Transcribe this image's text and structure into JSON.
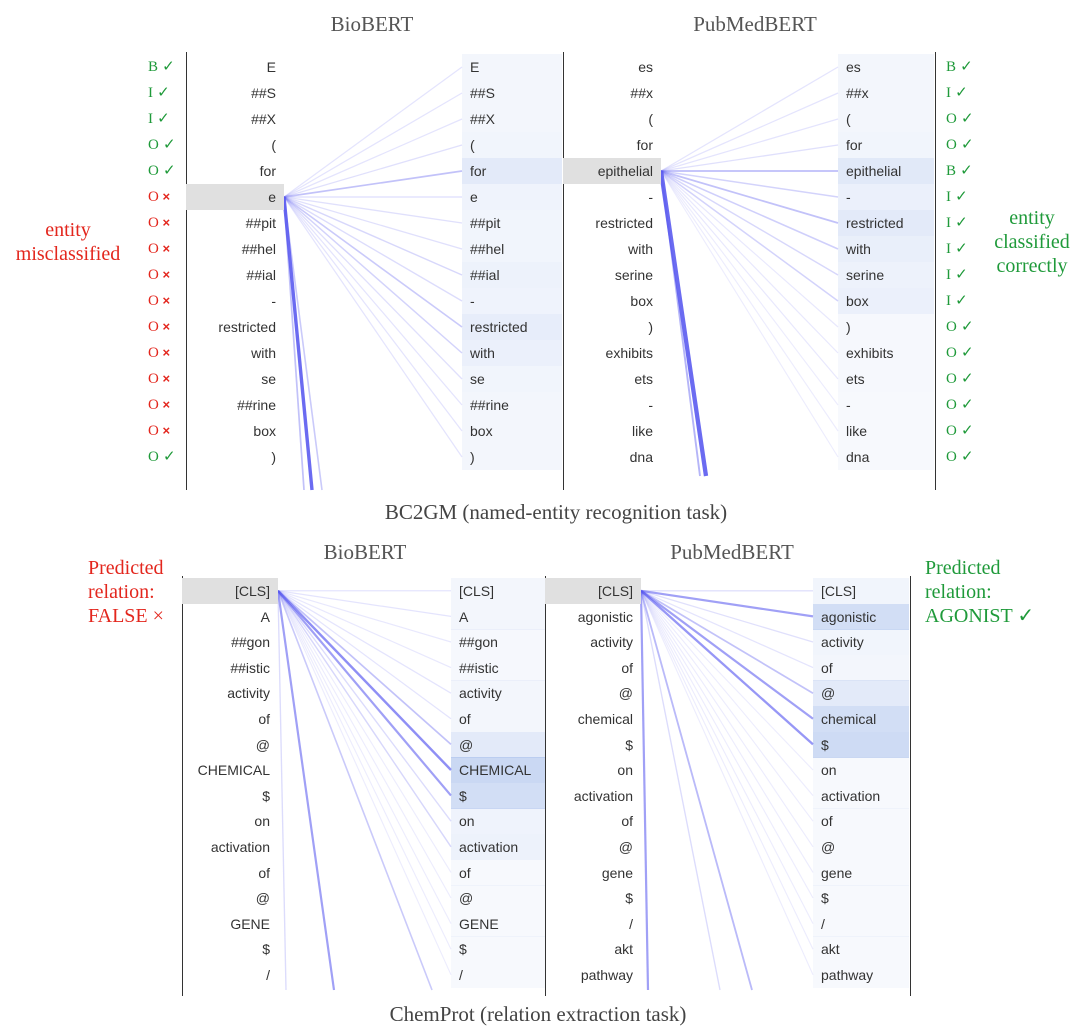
{
  "panels": [
    {
      "caption": "BC2GM (named-entity recognition task)",
      "models": [
        {
          "name": "BioBERT",
          "tokens": [
            "E",
            "##S",
            "##X",
            "(",
            "for",
            "e",
            "##pit",
            "##hel",
            "##ial",
            "-",
            "restricted",
            "with",
            "se",
            "##rine",
            "box",
            ")"
          ],
          "selected": 5,
          "target_weights": [
            0.04,
            0.04,
            0.04,
            0.05,
            0.12,
            0.06,
            0.05,
            0.05,
            0.07,
            0.06,
            0.1,
            0.08,
            0.05,
            0.04,
            0.04,
            0.04
          ],
          "labels": [
            {
              "tag": "B",
              "mark": "✓",
              "status": "correct"
            },
            {
              "tag": "I",
              "mark": "✓",
              "status": "correct"
            },
            {
              "tag": "I",
              "mark": "✓",
              "status": "correct"
            },
            {
              "tag": "O",
              "mark": "✓",
              "status": "correct"
            },
            {
              "tag": "O",
              "mark": "✓",
              "status": "correct"
            },
            {
              "tag": "O",
              "mark": "×",
              "status": "wrong"
            },
            {
              "tag": "O",
              "mark": "×",
              "status": "wrong"
            },
            {
              "tag": "O",
              "mark": "×",
              "status": "wrong"
            },
            {
              "tag": "O",
              "mark": "×",
              "status": "wrong"
            },
            {
              "tag": "O",
              "mark": "×",
              "status": "wrong"
            },
            {
              "tag": "O",
              "mark": "×",
              "status": "wrong"
            },
            {
              "tag": "O",
              "mark": "×",
              "status": "wrong"
            },
            {
              "tag": "O",
              "mark": "×",
              "status": "wrong"
            },
            {
              "tag": "O",
              "mark": "×",
              "status": "wrong"
            },
            {
              "tag": "O",
              "mark": "×",
              "status": "wrong"
            },
            {
              "tag": "O",
              "mark": "✓",
              "status": "correct"
            }
          ]
        },
        {
          "name": "PubMedBERT",
          "tokens": [
            "es",
            "##x",
            "(",
            "for",
            "epithelial",
            "-",
            "restricted",
            "with",
            "serine",
            "box",
            ")",
            "exhibits",
            "ets",
            "-",
            "like",
            "dna"
          ],
          "selected": 4,
          "target_weights": [
            0.04,
            0.04,
            0.04,
            0.05,
            0.13,
            0.08,
            0.12,
            0.09,
            0.07,
            0.08,
            0.03,
            0.03,
            0.03,
            0.02,
            0.02,
            0.02
          ],
          "labels": [
            {
              "tag": "B",
              "mark": "✓",
              "status": "correct"
            },
            {
              "tag": "I",
              "mark": "✓",
              "status": "correct"
            },
            {
              "tag": "O",
              "mark": "✓",
              "status": "correct"
            },
            {
              "tag": "O",
              "mark": "✓",
              "status": "correct"
            },
            {
              "tag": "B",
              "mark": "✓",
              "status": "correct"
            },
            {
              "tag": "I",
              "mark": "✓",
              "status": "correct"
            },
            {
              "tag": "I",
              "mark": "✓",
              "status": "correct"
            },
            {
              "tag": "I",
              "mark": "✓",
              "status": "correct"
            },
            {
              "tag": "I",
              "mark": "✓",
              "status": "correct"
            },
            {
              "tag": "I",
              "mark": "✓",
              "status": "correct"
            },
            {
              "tag": "O",
              "mark": "✓",
              "status": "correct"
            },
            {
              "tag": "O",
              "mark": "✓",
              "status": "correct"
            },
            {
              "tag": "O",
              "mark": "✓",
              "status": "correct"
            },
            {
              "tag": "O",
              "mark": "✓",
              "status": "correct"
            },
            {
              "tag": "O",
              "mark": "✓",
              "status": "correct"
            },
            {
              "tag": "O",
              "mark": "✓",
              "status": "correct"
            }
          ]
        }
      ],
      "notes": [
        {
          "lines": [
            "entity",
            "misclassified"
          ],
          "color": "#e3261d"
        },
        {
          "lines": [
            "entity",
            "classified",
            "correctly"
          ],
          "color": "#1f9a3a"
        }
      ]
    },
    {
      "caption": "ChemProt (relation extraction task)",
      "models": [
        {
          "name": "BioBERT",
          "tokens": [
            "[CLS]",
            "A",
            "##gon",
            "##istic",
            "activity",
            "of",
            "@",
            "CHEMICAL",
            "$",
            "on",
            "activation",
            "of",
            "@",
            "GENE",
            "$",
            "/"
          ],
          "selected": 0,
          "target_weights": [
            0.04,
            0.04,
            0.03,
            0.03,
            0.04,
            0.04,
            0.12,
            0.24,
            0.2,
            0.06,
            0.07,
            0.02,
            0.02,
            0.02,
            0.02,
            0.02
          ]
        },
        {
          "name": "PubMedBERT",
          "tokens": [
            "[CLS]",
            "agonistic",
            "activity",
            "of",
            "@",
            "chemical",
            "$",
            "on",
            "activation",
            "of",
            "@",
            "gene",
            "$",
            "/",
            "akt",
            "pathway"
          ],
          "selected": 0,
          "target_weights": [
            0.05,
            0.2,
            0.05,
            0.04,
            0.12,
            0.2,
            0.22,
            0.02,
            0.02,
            0.02,
            0.02,
            0.02,
            0.02,
            0.02,
            0.02,
            0.02
          ]
        }
      ],
      "notes": [
        {
          "lines": [
            "Predicted",
            "relation:",
            "FALSE ×"
          ],
          "color": "#e3261d"
        },
        {
          "lines": [
            "Predicted",
            "relation:",
            "AGONIST ✓"
          ],
          "color": "#1f9a3a"
        }
      ]
    }
  ],
  "colors": {
    "correct": "#1f9a3a",
    "wrong": "#e3261d",
    "attention": "#5b5bf0",
    "selected_bg": "#e0e0e0",
    "title": "#555555"
  }
}
